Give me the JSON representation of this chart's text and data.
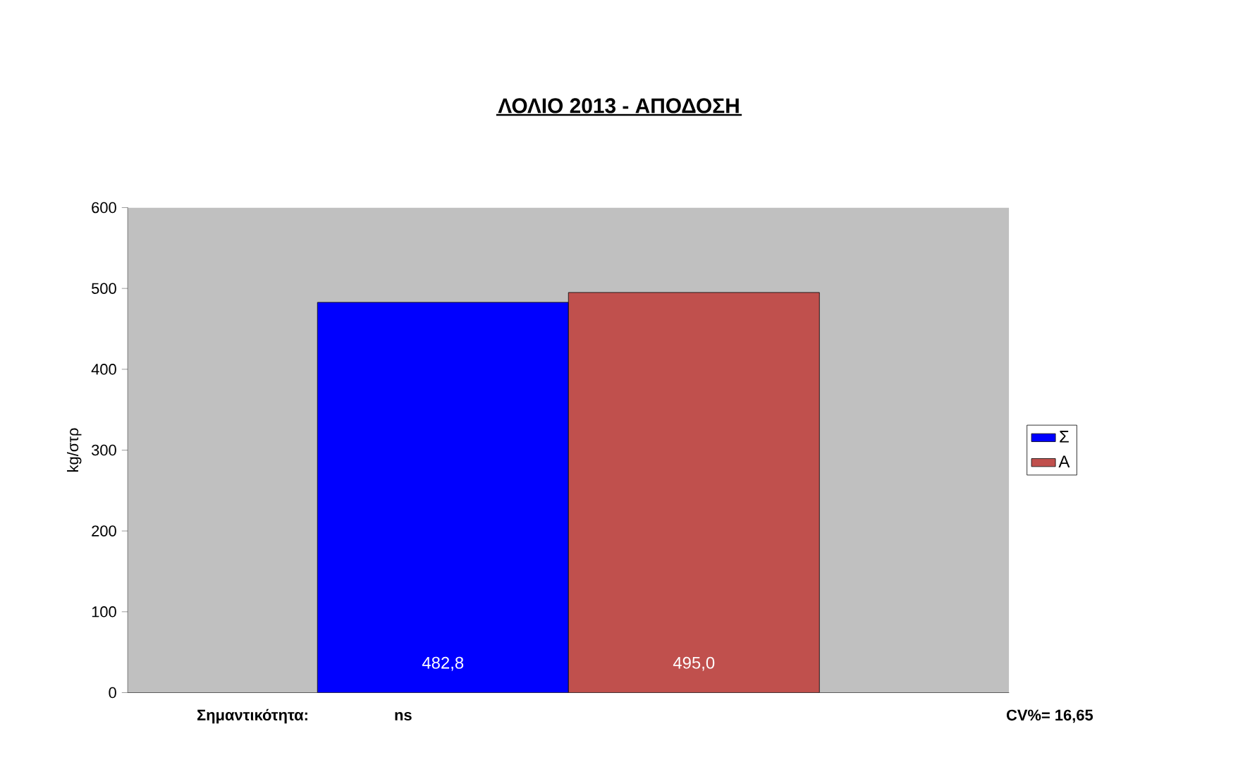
{
  "chart_data": {
    "type": "bar",
    "title": "**ΛΟΛΙΟ 2013 - ΑΠΟΔΟΣΗ**",
    "ylabel": "kg/στρ",
    "categories": [
      null
    ],
    "series": [
      {
        "name": "Σ",
        "color": "#0000ff",
        "values": [
          482.8
        ],
        "value_labels": [
          "482,8"
        ]
      },
      {
        "name": "Α",
        "color": "#c0504d",
        "values": [
          495.0
        ],
        "value_labels": [
          "495,0"
        ]
      }
    ],
    "ylim": [
      0,
      600
    ],
    "yticks": [
      0,
      100,
      200,
      300,
      400,
      500,
      600
    ],
    "grid": false,
    "legend": "right",
    "annotations": [
      "Σημαντικότητα:",
      "ns",
      "CV%= 16,65"
    ]
  }
}
